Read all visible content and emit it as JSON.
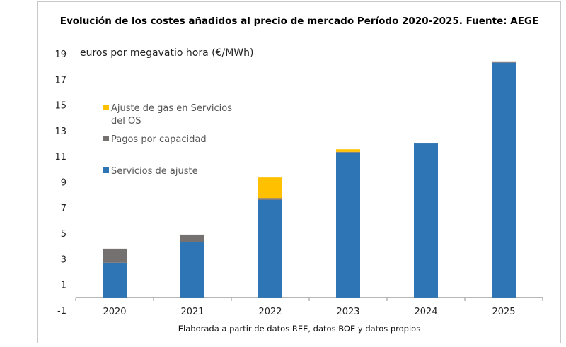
{
  "chart_data": {
    "type": "bar",
    "stacked": true,
    "title": "Evolución de los costes añadidos al precio de mercado Período 2020-2025. Fuente: AEGE",
    "ylabel": "euros por megavatio hora (€/MWh)",
    "xlabel": "",
    "note": "Elaborada a partir de datos REE, datos BOE y datos propios",
    "categories": [
      "2020",
      "2021",
      "2022",
      "2023",
      "2024",
      "2025"
    ],
    "ylim": [
      -1,
      19
    ],
    "yticks": [
      "19",
      "17",
      "15",
      "13",
      "11",
      "9",
      "7",
      "5",
      "3",
      "1",
      "-1"
    ],
    "yticks_values": [
      19,
      17,
      15,
      13,
      11,
      9,
      7,
      5,
      3,
      1,
      -1
    ],
    "grid": false,
    "legend_position": "upper-left",
    "series": [
      {
        "name": "Servicios de ajuste",
        "color": "#2e75b6",
        "values": [
          2.7,
          4.3,
          7.6,
          11.3,
          12.0,
          18.3
        ]
      },
      {
        "name": "Pagos por capacidad",
        "color": "#767171",
        "values": [
          1.1,
          0.6,
          0.15,
          0.05,
          0.05,
          0.05
        ]
      },
      {
        "name": "Ajuste de gas en Servicios del OS",
        "color": "#ffc000",
        "values": [
          0,
          0,
          1.6,
          0.2,
          0,
          0
        ]
      }
    ],
    "legend_entries": [
      {
        "lines": [
          "Ajuste de gas en Servicios",
          "del OS"
        ],
        "color": "#ffc000"
      },
      {
        "lines": [
          "Pagos por capacidad"
        ],
        "color": "#767171"
      },
      {
        "lines": [
          "Servicios de ajuste"
        ],
        "color": "#2e75b6"
      }
    ]
  }
}
